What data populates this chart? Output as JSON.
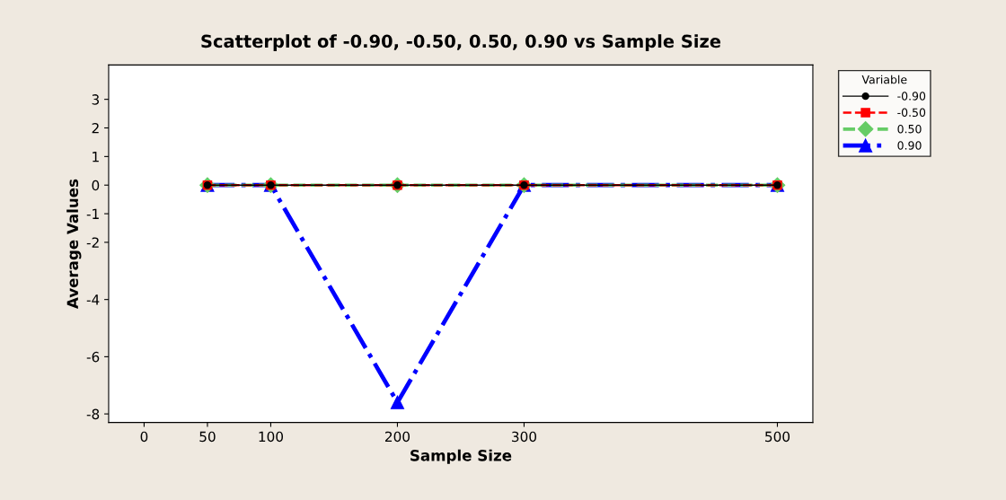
{
  "chart_data": {
    "type": "line",
    "title": "Scatterplot of -0.90, -0.50, 0.50, 0.90 vs Sample Size",
    "xlabel": "Sample Size",
    "ylabel": "Average Values",
    "legend_title": "Variable",
    "x": [
      50,
      100,
      200,
      300,
      500
    ],
    "series": [
      {
        "name": "-0.90",
        "color": "#000000",
        "values": [
          0,
          0,
          0,
          0,
          0
        ],
        "marker": "circle",
        "line_style": "solid"
      },
      {
        "name": "-0.50",
        "color": "#ff0000",
        "values": [
          0,
          0,
          0,
          0,
          0
        ],
        "marker": "square",
        "line_style": "dashed"
      },
      {
        "name": "0.50",
        "color": "#66cc66",
        "values": [
          0,
          0,
          0,
          0,
          0
        ],
        "marker": "diamond",
        "line_style": "dashed"
      },
      {
        "name": "0.90",
        "color": "#0000ff",
        "values": [
          0,
          0,
          -7.6,
          0,
          0
        ],
        "marker": "triangle",
        "line_style": "dashdot"
      }
    ],
    "xlim": [
      -28,
      528
    ],
    "xticks": [
      0,
      50,
      100,
      200,
      300,
      500
    ],
    "ylim": [
      -8.3,
      4.2
    ],
    "yticks": [
      3,
      2,
      1,
      0,
      -1,
      -2,
      -4,
      -6,
      -8
    ],
    "grid": false,
    "legend": "top right"
  }
}
